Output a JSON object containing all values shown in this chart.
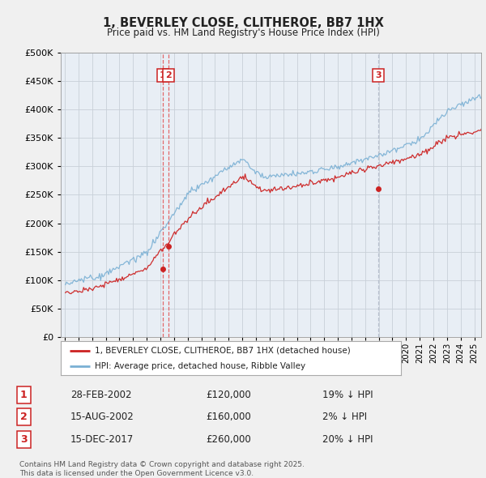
{
  "title": "1, BEVERLEY CLOSE, CLITHEROE, BB7 1HX",
  "subtitle": "Price paid vs. HM Land Registry's House Price Index (HPI)",
  "bg_color": "#f0f0f0",
  "plot_bg_color": "#e8eef5",
  "red_line_label": "1, BEVERLEY CLOSE, CLITHEROE, BB7 1HX (detached house)",
  "blue_line_label": "HPI: Average price, detached house, Ribble Valley",
  "transactions": [
    {
      "num": 1,
      "date": "28-FEB-2002",
      "price": 120000,
      "rel": "19% ↓ HPI",
      "x_year": 2002.15
    },
    {
      "num": 2,
      "date": "15-AUG-2002",
      "price": 160000,
      "rel": "2% ↓ HPI",
      "x_year": 2002.62
    },
    {
      "num": 3,
      "date": "15-DEC-2017",
      "price": 260000,
      "rel": "20% ↓ HPI",
      "x_year": 2017.96
    }
  ],
  "vline_colors": [
    "#e05050",
    "#e05050",
    "#b0b8c8"
  ],
  "footer": "Contains HM Land Registry data © Crown copyright and database right 2025.\nThis data is licensed under the Open Government Licence v3.0.",
  "ylim": [
    0,
    500000
  ],
  "yticks": [
    0,
    50000,
    100000,
    150000,
    200000,
    250000,
    300000,
    350000,
    400000,
    450000,
    500000
  ],
  "xlim_start": 1994.7,
  "xlim_end": 2025.5
}
